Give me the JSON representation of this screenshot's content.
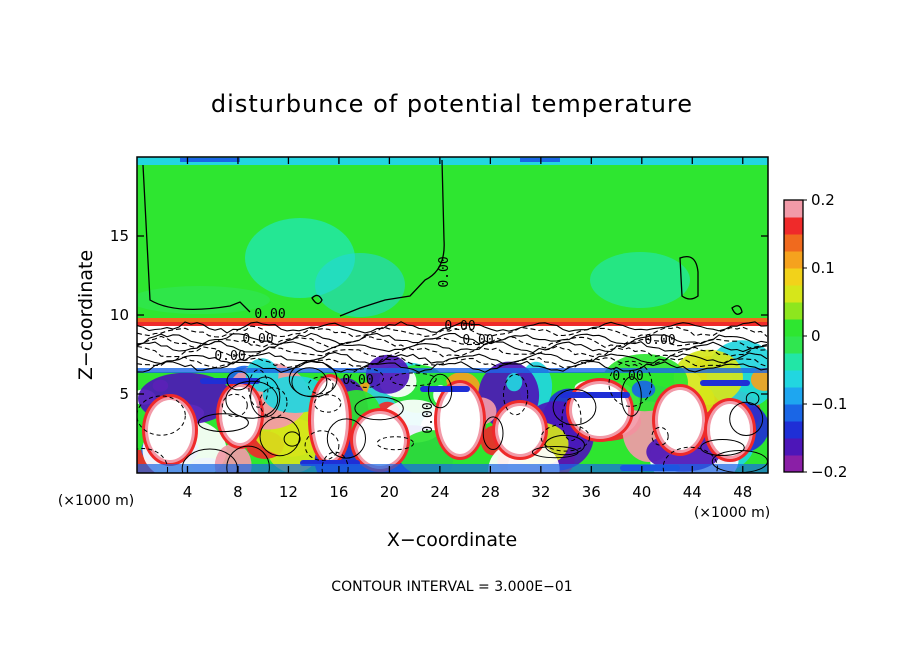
{
  "chart_data": {
    "type": "heatmap",
    "title": "disturbunce of potential temperature",
    "xlabel": "X−coordinate",
    "ylabel": "Z−coordinate",
    "x_unit": "(×1000 m)",
    "z_unit": "(×1000 m)",
    "xlim": [
      0,
      50
    ],
    "ylim": [
      0,
      20
    ],
    "x_ticks": [
      4,
      8,
      12,
      16,
      20,
      24,
      28,
      32,
      36,
      40,
      44,
      48
    ],
    "y_ticks": [
      5,
      10,
      15
    ],
    "colorbar": {
      "min": -0.2,
      "max": 0.2,
      "tick_values": [
        0.2,
        0.1,
        0,
        -0.1,
        -0.2
      ],
      "tick_labels": [
        "0.2",
        "0.1",
        "0",
        "−0.1",
        "−0.2"
      ],
      "colors": [
        "#8a1fa6",
        "#4d16b8",
        "#1f2fd6",
        "#1a66e6",
        "#1ea6f0",
        "#22d6e0",
        "#22e6a6",
        "#30e650",
        "#2ee630",
        "#8ee61e",
        "#d6e61a",
        "#f2d21a",
        "#f5a21e",
        "#f06a1e",
        "#ef2a2a",
        "#f29aa8"
      ]
    },
    "contour_labels": [
      "0.00",
      "0.00",
      "0.00",
      "0.00",
      "0.00",
      "0.00",
      "0.00",
      "0.00",
      "0.00",
      "0.00"
    ],
    "footer": "CONTOUR INTERVAL = 3.000E−01",
    "grid": false
  }
}
